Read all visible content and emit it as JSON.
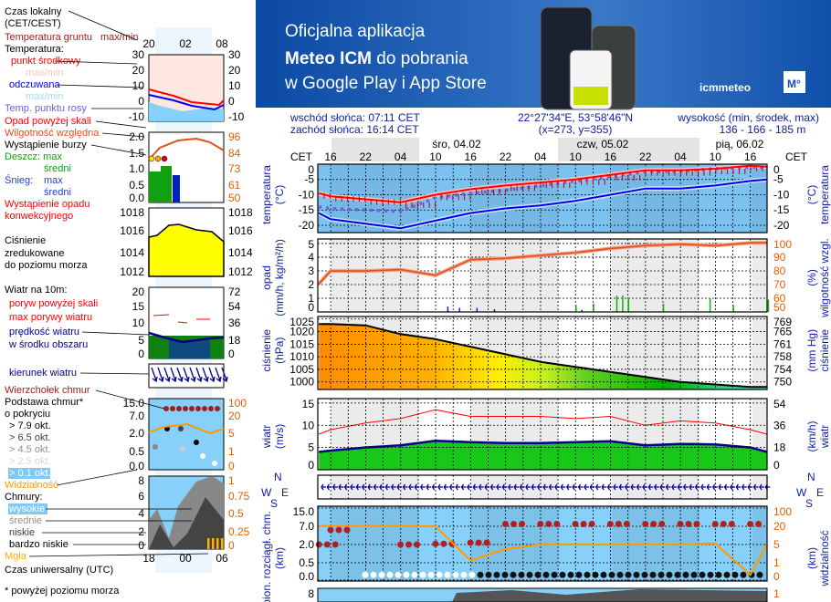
{
  "banner": {
    "line1": "Oficjalna aplikacja",
    "line2_bold": "Meteo ICM",
    "line2_rest": " do pobrania",
    "line3": "w Google Play i App Store",
    "logo_text": "icmmeteo",
    "logo_badge": "M°",
    "bg_color": "#0d4ea6"
  },
  "header": {
    "sunrise": "wschód słońca: 07:11 CET",
    "sunset": "zachód słońca: 16:14 CET",
    "coords": "22°27'34\"E, 53°58'46\"N",
    "grid": "(x=273,  y=355)",
    "elevation_label": "wysokość (min, środek, max)",
    "elevation": "136 - 166 - 185 m"
  },
  "timeline": {
    "cet_label": "CET",
    "days": [
      "śro, 04.02",
      "czw, 05.02",
      "pią, 06.02"
    ],
    "ticks": [
      "16",
      "22",
      "04",
      "10",
      "16",
      "22",
      "04",
      "10",
      "16",
      "22",
      "04",
      "10",
      "16"
    ]
  },
  "axes": {
    "temp": {
      "left": [
        "0",
        "-5",
        "-10",
        "-15",
        "-20"
      ],
      "right": [
        "0",
        "-5",
        "-10",
        "-15",
        "-20"
      ],
      "title_l1": "temperatura",
      "title_l2": "(°C)",
      "title_r1": "(°C)",
      "title_r2": "temperatura"
    },
    "precip": {
      "left": [
        "5",
        "4",
        "3",
        "2",
        "1",
        "0"
      ],
      "right": [
        "100",
        "90",
        "80",
        "70",
        "60",
        "50"
      ],
      "title_l1": "opad",
      "title_l2": "(mm/h, kg/m²/h)",
      "title_r1": "(%)",
      "title_r2": "wilgotność wzgl."
    },
    "pressure": {
      "left": [
        "1025",
        "1020",
        "1015",
        "1010",
        "1005",
        "1000"
      ],
      "right": [
        "769",
        "765",
        "761",
        "758",
        "754",
        "750"
      ],
      "title_l1": "ciśnienie",
      "title_l2": "(hPa)",
      "title_r1": "(mm Hg)",
      "title_r2": "ciśnienie"
    },
    "wind": {
      "left": [
        "15",
        "10",
        "5",
        "0"
      ],
      "right": [
        "54",
        "36",
        "18",
        "0"
      ],
      "title_l1": "wiatr",
      "title_l2": "(m/s)",
      "title_r1": "(km/h)",
      "title_r2": "wiatr"
    },
    "winddir": {
      "compass": [
        "N",
        "W",
        "E",
        "S"
      ]
    },
    "cloud": {
      "left": [
        "15.0",
        "7.0",
        "2.0",
        "0.5",
        "0.0"
      ],
      "right": [
        "100",
        "20",
        "5",
        "1",
        "0"
      ],
      "title_l1": "pion. rozciągł. chm.",
      "title_l2": "(km)",
      "title_r1": "(km)",
      "title_r2": "widzialność"
    },
    "clouds_bottom": {
      "left": [
        "8"
      ],
      "right": [
        "1"
      ]
    }
  },
  "legend": {
    "local_time": "Czas lokalny",
    "local_time2": "(CET/CEST)",
    "top_ticks": [
      "20",
      "02",
      "08"
    ],
    "bottom_ticks": [
      "18",
      "00",
      "06"
    ],
    "ground_temp": "Temperatura gruntu",
    "ground_temp2": "max/min",
    "temperature": "Temperatura:",
    "mid_point": "punkt środkowy",
    "maxmin1": "max/min",
    "feels": "odczuwana",
    "maxmin2": "max/min",
    "dew": "Temp. punktu rosy",
    "precip_over": "Opad powyżej skali",
    "humidity": "Wilgotność względna",
    "storm": "Wystąpienie burzy",
    "rain_max": "Deszcz: max",
    "rain_avg": "średni",
    "snow": "Śnieg:",
    "snow_max": "max",
    "snow_avg": "średni",
    "convective1": "Wystąpienie opadu",
    "convective2": "konwekcyjnego",
    "pressure1": "Ciśnienie",
    "pressure2": "zredukowane",
    "pressure3": "do poziomu morza",
    "wind10": "Wiatr na 10m:",
    "gust_over": "poryw powyżej skali",
    "gust_max": "max porywy wiatru",
    "wind_speed1": "prędkość wiatru",
    "wind_speed2": "w środku obszaru",
    "wind_dir": "kierunek wiatru",
    "cloud_top": "Wierzchołek chmur",
    "cloud_base1": "Podstawa chmur*",
    "cloud_base2": "o pokryciu",
    "okt": [
      "> 7.9 okt.",
      "> 6.5 okt.",
      "> 4.5 okt.",
      "> 2.5 okt.",
      "> 0.1 okt."
    ],
    "visibility": "Widzialność",
    "clouds": "Chmury:",
    "high": "wysokie",
    "medium": "średnie",
    "low": "niskie",
    "very_low": "bardzo niskie",
    "fog": "Mgła",
    "utc": "Czas uniwersalny (UTC)",
    "footnote": "* powyżej poziomu morza",
    "axes": {
      "temp": [
        "30",
        "20",
        "10",
        "0",
        "-10"
      ],
      "precip_l": [
        "2.0",
        "1.5",
        "1.0",
        "0.5",
        "0.0"
      ],
      "precip_r": [
        "96",
        "84",
        "73",
        "61",
        "50"
      ],
      "pressure": [
        "1018",
        "1016",
        "1014",
        "1012"
      ],
      "wind_l": [
        "20",
        "15",
        "10",
        "5",
        "0"
      ],
      "wind_r": [
        "72",
        "54",
        "36",
        "18",
        "0"
      ],
      "cloud_l": [
        "15.0",
        "7.0",
        "2.0",
        "0.5",
        "0.0"
      ],
      "cloud_r": [
        "100",
        "20",
        "5",
        "1",
        "0"
      ],
      "clouds_l": [
        "8",
        "6",
        "4",
        "2",
        "0"
      ],
      "clouds_r": [
        "1",
        "0.75",
        "0.5",
        "0.25",
        "0"
      ]
    }
  },
  "chart_data": {
    "type": "line",
    "x": [
      "03.02 14:00",
      "03.02 16:00",
      "03.02 22:00",
      "04.02 04:00",
      "04.02 10:00",
      "04.02 16:00",
      "04.02 22:00",
      "05.02 04:00",
      "05.02 10:00",
      "05.02 16:00",
      "05.02 22:00",
      "06.02 04:00",
      "06.02 10:00",
      "06.02 16:00",
      "06.02 19:00"
    ],
    "series": [
      {
        "name": "punkt środkowy",
        "panel": "temperature",
        "color": "#ff0000",
        "values": [
          -9.5,
          -10.5,
          -11.5,
          -12.5,
          -10,
          -8.2,
          -7,
          -6,
          -5,
          -3.5,
          -2,
          -2,
          -1.5,
          -0.5,
          -0.8
        ]
      },
      {
        "name": "odczuwana",
        "panel": "temperature",
        "color": "#0000ee",
        "values": [
          -16,
          -18,
          -19.5,
          -21,
          -18.5,
          -16,
          -14.5,
          -13.5,
          -12,
          -10,
          -8,
          -8,
          -7,
          -5.5,
          -5
        ]
      },
      {
        "name": "Temp. punktu rosy",
        "panel": "temperature",
        "color": "#7060e0",
        "values": [
          -14,
          -14.5,
          -15,
          -15.5,
          -11,
          -9.5,
          -8.5,
          -7,
          -5.5,
          -4,
          -2.5,
          -2.3,
          -1.5,
          -1,
          -1
        ]
      },
      {
        "name": "Wilgotność względna",
        "panel": "precipitation",
        "unit": "%",
        "color": "#e05020",
        "values": [
          70,
          79,
          79,
          80,
          76,
          87,
          88,
          90,
          92,
          95,
          97,
          98,
          97,
          99,
          99
        ]
      },
      {
        "name": "Ciśnienie",
        "panel": "pressure",
        "unit": "hPa",
        "color": "#000000",
        "values": [
          1023,
          1023,
          1022.5,
          1019,
          1017,
          1014,
          1011,
          1008,
          1006,
          1004,
          1002,
          1000,
          999,
          998,
          998
        ]
      },
      {
        "name": "prędkość wiatru",
        "panel": "wind",
        "unit": "m/s",
        "color": "#000080",
        "values": [
          4,
          4.3,
          5,
          5.5,
          6.5,
          6.2,
          6,
          6,
          6.2,
          6.4,
          5.5,
          5.8,
          5.7,
          5,
          4
        ]
      },
      {
        "name": "max porywy wiatru",
        "panel": "wind",
        "unit": "m/s",
        "color": "#ff0000",
        "values": [
          8,
          9,
          10.5,
          11.5,
          13.5,
          12,
          12,
          12,
          11.5,
          12,
          10,
          11,
          10.5,
          9,
          8
        ]
      },
      {
        "name": "Widzialność",
        "panel": "cloud",
        "unit": "km",
        "color": "#ff9900",
        "values": [
          22,
          21,
          22,
          21,
          20,
          1.5,
          4,
          5,
          5,
          5,
          5,
          5,
          6,
          0.3,
          5
        ]
      },
      {
        "name": "Wierzchołek chmur",
        "panel": "cloud",
        "unit": "km",
        "color": "#a02020",
        "values": [
          2,
          6,
          null,
          2,
          2.2,
          2.5,
          8,
          8,
          8,
          8,
          8,
          8,
          8,
          8,
          8
        ]
      }
    ],
    "precip_bars": {
      "snow": {
        "color": "#0030e0",
        "x": [
          "04.02 12:00",
          "04.02 14:00",
          "04.02 17:00",
          "04.02 20:00",
          "05.02 11:00"
        ],
        "values": [
          0.4,
          0.3,
          0.3,
          0.2,
          0.15
        ]
      },
      "rain": {
        "color": "#10b010",
        "x": [
          "05.02 10:00",
          "05.02 13:00",
          "05.02 17:00",
          "05.02 18:00",
          "05.02 19:00",
          "06.02 01:00",
          "06.02 09:00",
          "06.02 13:00",
          "06.02 19:00"
        ],
        "values": [
          0.5,
          0.6,
          1.2,
          1.2,
          1.0,
          0.6,
          1.0,
          0.5,
          0.9
        ]
      }
    },
    "ylim": {
      "temperature": [
        -22.5,
        0
      ],
      "precipitation": [
        0,
        5
      ],
      "humidity": [
        50,
        100
      ],
      "pressure": [
        997,
        1025
      ],
      "wind": [
        0,
        15
      ]
    },
    "grid": true
  }
}
